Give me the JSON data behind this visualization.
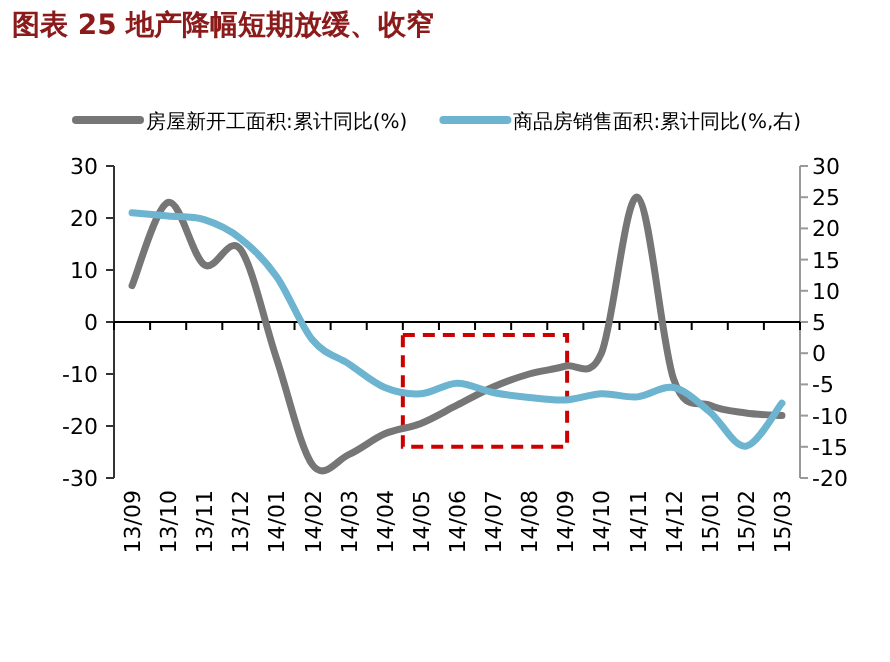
{
  "chart_data": {
    "type": "line",
    "title": "图表 25   地产降幅短期放缓、收窄",
    "categories": [
      "13/09",
      "13/10",
      "13/11",
      "13/12",
      "14/01",
      "14/02",
      "14/03",
      "14/04",
      "14/05",
      "14/06",
      "14/07",
      "14/08",
      "14/09",
      "14/10",
      "14/11",
      "14/12",
      "15/01",
      "15/02",
      "15/03"
    ],
    "series": [
      {
        "name": "房屋新开工面积:累计同比(%)",
        "color": "#767676",
        "values": [
          7,
          23,
          11,
          14,
          -7,
          -27.5,
          -25.5,
          -21.5,
          -19.5,
          -16,
          -12.5,
          -10,
          -8.5,
          -6,
          24,
          -11,
          -16,
          -17.5,
          -18
        ]
      },
      {
        "name": "商品房销售面积:累计同比(%,右)",
        "color": "#6cb4cf",
        "axis": "y2",
        "values": [
          22.5,
          22,
          21.4,
          18.4,
          12.3,
          2.1,
          -1.7,
          -5.5,
          -6.5,
          -4.8,
          -6.3,
          -7.1,
          -7.5,
          -6.5,
          -7,
          -5.5,
          -9.4,
          -14.9,
          -8
        ]
      }
    ],
    "ylim": [
      -30,
      30
    ],
    "yticks": [
      -30,
      -20,
      -10,
      0,
      10,
      20,
      30
    ],
    "y2lim": [
      -20,
      30
    ],
    "y2ticks": [
      -20,
      -15,
      -10,
      -5,
      0,
      5,
      10,
      15,
      20,
      25,
      30
    ],
    "legend": "top"
  }
}
